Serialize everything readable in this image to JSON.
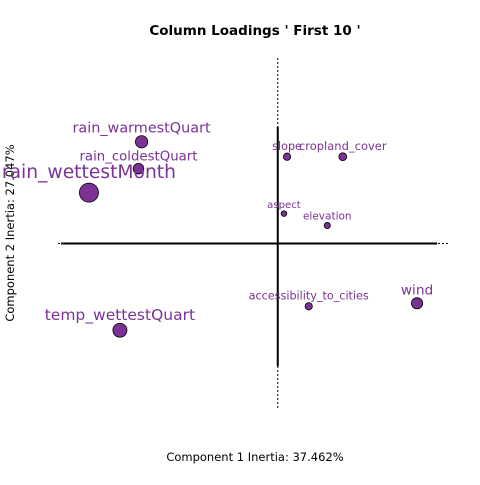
{
  "chart_data": {
    "type": "scatter",
    "title": "Column Loadings ' First 10 '",
    "xlabel": "Component 1 Inertia: 37.462%",
    "ylabel": "Component 2 Inertia: 27.047%",
    "grid": false,
    "xlim": [
      -0.71,
      0.55
    ],
    "ylim": [
      -0.55,
      0.62
    ],
    "point_color": "#7b3294",
    "label_color": "#7b3294",
    "axis_line_color": "#000000",
    "points": [
      {
        "label": "rain_warmestQuart",
        "x": -0.44,
        "y": 0.34,
        "size": 2.2
      },
      {
        "label": "rain_coldestQuart",
        "x": -0.45,
        "y": 0.25,
        "size": 1.9
      },
      {
        "label": "rain_wettestMonth",
        "x": -0.61,
        "y": 0.17,
        "size": 3.4
      },
      {
        "label": "slope",
        "x": 0.03,
        "y": 0.29,
        "size": 1.3
      },
      {
        "label": "cropland_cover",
        "x": 0.21,
        "y": 0.29,
        "size": 1.4
      },
      {
        "label": "aspect",
        "x": 0.02,
        "y": 0.1,
        "size": 1.0
      },
      {
        "label": "elevation",
        "x": 0.16,
        "y": 0.06,
        "size": 1.1
      },
      {
        "label": "accessibility_to_cities",
        "x": 0.1,
        "y": -0.21,
        "size": 1.3
      },
      {
        "label": "wind",
        "x": 0.45,
        "y": -0.2,
        "size": 2.0
      },
      {
        "label": "temp_wettestQuart",
        "x": -0.51,
        "y": -0.29,
        "size": 2.5
      }
    ]
  }
}
